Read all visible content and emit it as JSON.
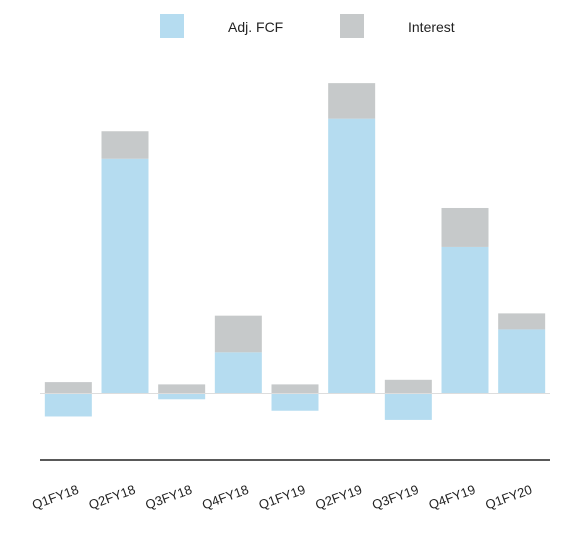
{
  "chart_data": {
    "type": "bar",
    "stacked": true,
    "categories": [
      "Q1FY18",
      "Q2FY18",
      "Q3FY18",
      "Q4FY18",
      "Q1FY19",
      "Q2FY19",
      "Q3FY19",
      "Q4FY19",
      "Q1FY20"
    ],
    "series": [
      {
        "name": "Adj. FCF",
        "color": "#b5dcf0",
        "values": [
          -20,
          205,
          -5,
          36,
          -15,
          240,
          -23,
          128,
          56
        ]
      },
      {
        "name": "Interest",
        "color": "#c6c9ca",
        "values": [
          10,
          24,
          8,
          32,
          8,
          31,
          12,
          34,
          14
        ]
      }
    ],
    "ylim": [
      -58,
      265
    ],
    "grid": false,
    "legend": "top-center",
    "xlabel": "",
    "ylabel": ""
  }
}
